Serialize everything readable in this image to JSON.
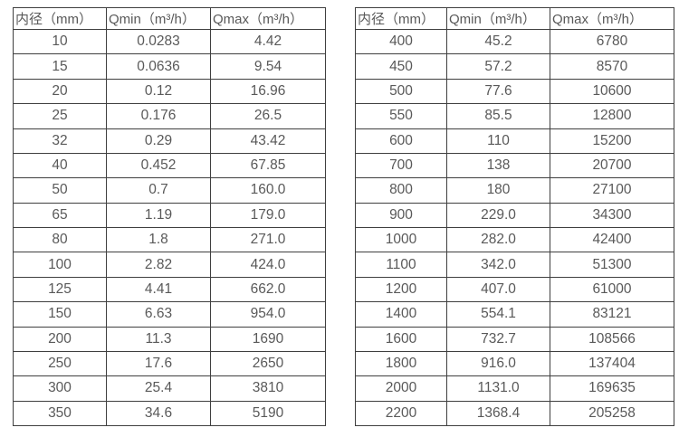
{
  "page": {
    "background_color": "#ffffff",
    "border_color": "#3f3f3f",
    "text_color": "#595959"
  },
  "tables": [
    {
      "name": "flow-table-small-diameters",
      "headers": [
        "内径（mm）",
        "Qmin（m³/h）",
        "Qmax（m³/h）"
      ],
      "rows": [
        [
          "10",
          "0.0283",
          "4.42"
        ],
        [
          "15",
          "0.0636",
          "9.54"
        ],
        [
          "20",
          "0.12",
          "16.96"
        ],
        [
          "25",
          "0.176",
          "26.5"
        ],
        [
          "32",
          "0.29",
          "43.42"
        ],
        [
          "40",
          "0.452",
          "67.85"
        ],
        [
          "50",
          "0.7",
          "160.0"
        ],
        [
          "65",
          "1.19",
          "179.0"
        ],
        [
          "80",
          "1.8",
          "271.0"
        ],
        [
          "100",
          "2.82",
          "424.0"
        ],
        [
          "125",
          "4.41",
          "662.0"
        ],
        [
          "150",
          "6.63",
          "954.0"
        ],
        [
          "200",
          "11.3",
          "1690"
        ],
        [
          "250",
          "17.6",
          "2650"
        ],
        [
          "300",
          "25.4",
          "3810"
        ],
        [
          "350",
          "34.6",
          "5190"
        ]
      ]
    },
    {
      "name": "flow-table-large-diameters",
      "headers": [
        "内径（mm）",
        "Qmin（m³/h）",
        "Qmax（m³/h）"
      ],
      "rows": [
        [
          "400",
          "45.2",
          "6780"
        ],
        [
          "450",
          "57.2",
          "8570"
        ],
        [
          "500",
          "77.6",
          "10600"
        ],
        [
          "550",
          "85.5",
          "12800"
        ],
        [
          "600",
          "110",
          "15200"
        ],
        [
          "700",
          "138",
          "20700"
        ],
        [
          "800",
          "180",
          "27100"
        ],
        [
          "900",
          "229.0",
          "34300"
        ],
        [
          "1000",
          "282.0",
          "42400"
        ],
        [
          "1100",
          "342.0",
          "51300"
        ],
        [
          "1200",
          "407.0",
          "61000"
        ],
        [
          "1400",
          "554.1",
          "83121"
        ],
        [
          "1600",
          "732.7",
          "108566"
        ],
        [
          "1800",
          "916.0",
          "137404"
        ],
        [
          "2000",
          "1131.0",
          "169635"
        ],
        [
          "2200",
          "1368.4",
          "205258"
        ]
      ]
    }
  ]
}
